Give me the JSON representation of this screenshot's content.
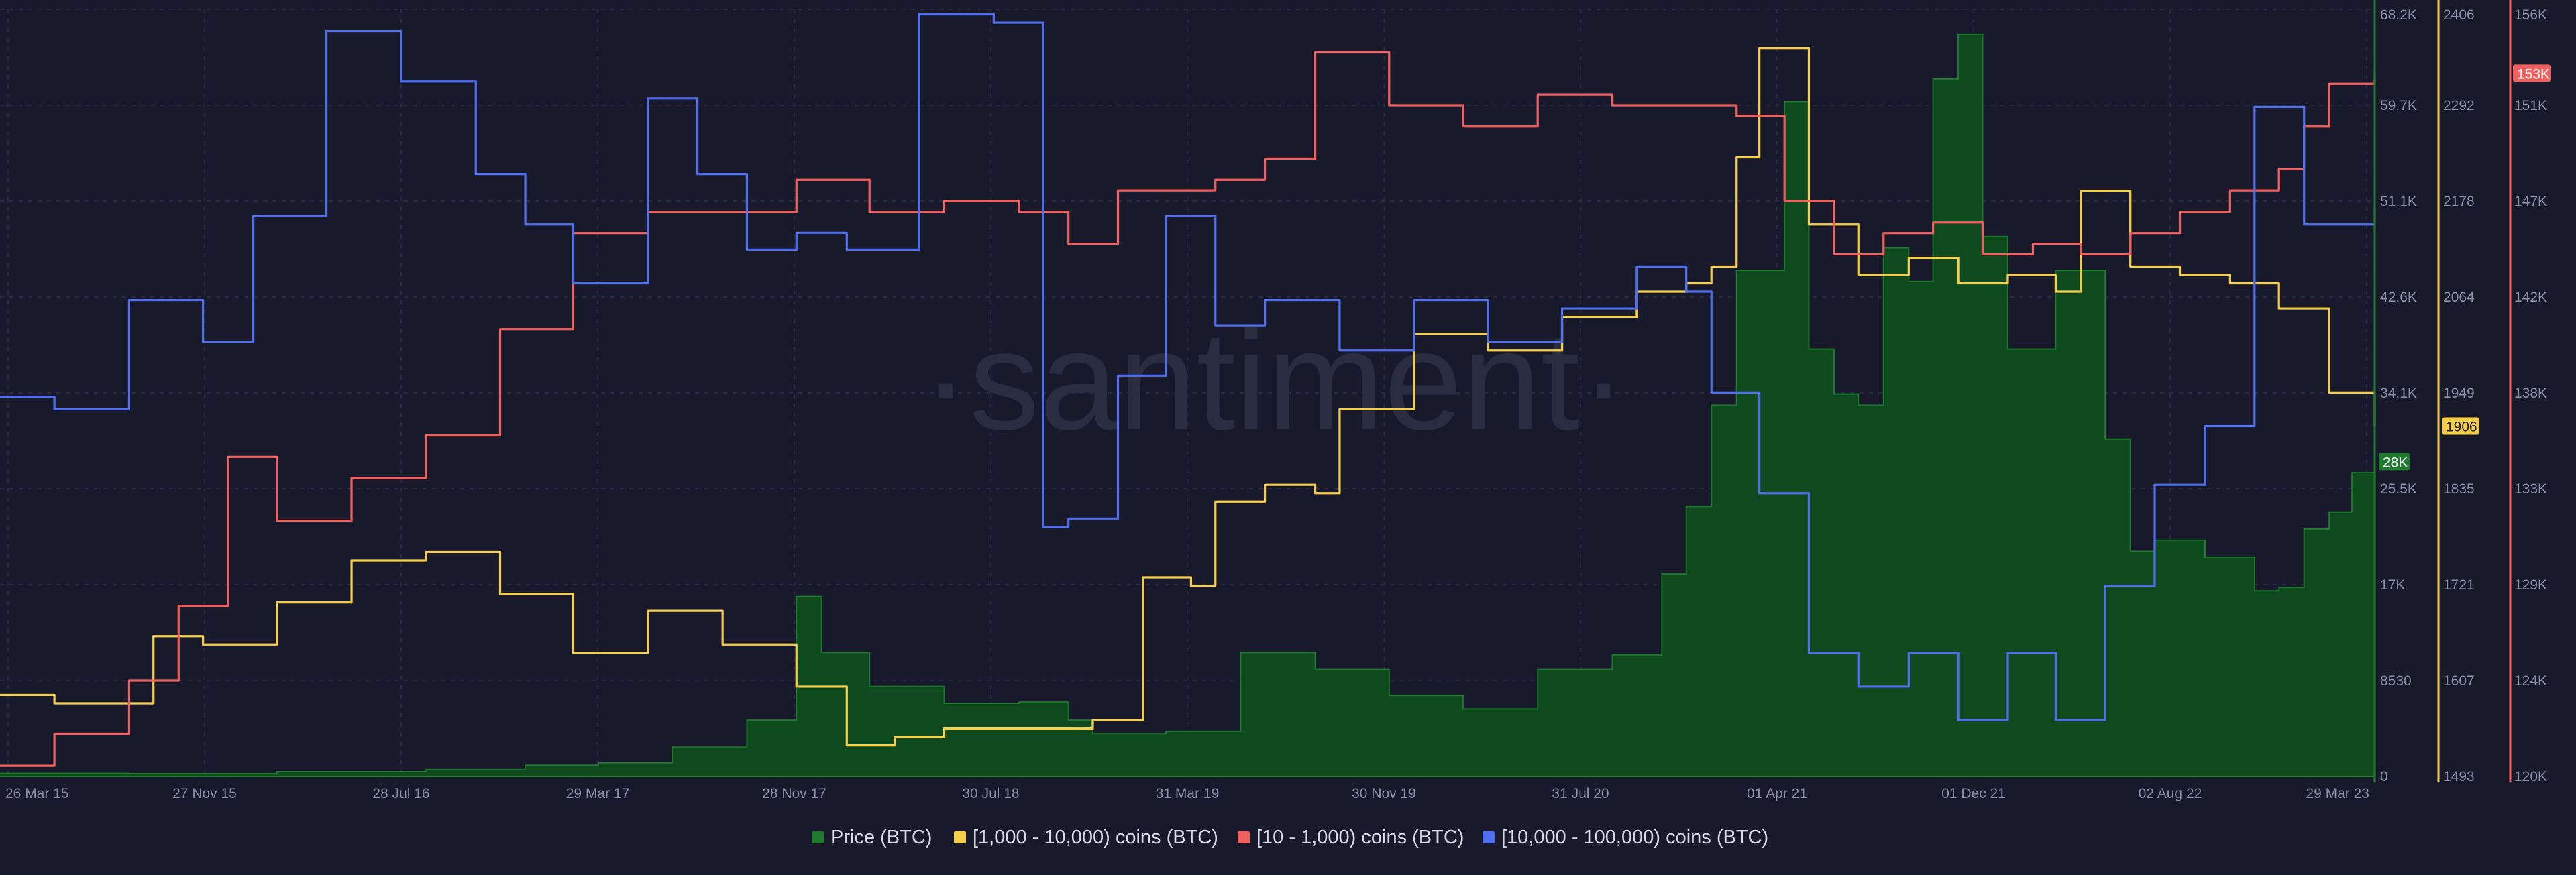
{
  "watermark": "·santiment·",
  "colors": {
    "background": "#181a2b",
    "grid": "#262940",
    "price": "#1f7a2e",
    "price_fill": "#0f4a1f",
    "large": "#f5cf4a",
    "small": "#f0605e",
    "whale": "#4f6ff0",
    "axis_text": "#8b8fa8"
  },
  "chart_data": {
    "type": "area",
    "title": "",
    "x_ticks": [
      "26 Mar 15",
      "27 Nov 15",
      "28 Jul 16",
      "29 Mar 17",
      "28 Nov 17",
      "30 Jul 18",
      "31 Mar 19",
      "30 Nov 19",
      "31 Jul 20",
      "01 Apr 21",
      "01 Dec 21",
      "02 Aug 22",
      "29 Mar 23"
    ],
    "x_range": [
      "2015-03-26",
      "2023-03-29"
    ],
    "axes": [
      {
        "id": "price",
        "ticks": [
          "0",
          "8530",
          "17K",
          "25.5K",
          "34.1K",
          "42.6K",
          "51.1K",
          "59.7K",
          "68.2K"
        ],
        "range": [
          0,
          68200
        ],
        "current_label": "28K"
      },
      {
        "id": "large",
        "ticks": [
          "1493",
          "1607",
          "1721",
          "1835",
          "1949",
          "2064",
          "2178",
          "2292",
          "2406"
        ],
        "range": [
          1493,
          2406
        ],
        "current_label": "1906"
      },
      {
        "id": "small",
        "ticks": [
          "120K",
          "124K",
          "129K",
          "133K",
          "138K",
          "142K",
          "147K",
          "151K",
          "156K"
        ],
        "range": [
          120000,
          156000
        ],
        "current_label": "153K"
      }
    ],
    "series": [
      {
        "name": "Price (BTC)",
        "axis": "price",
        "kind": "area",
        "x": [
          "2015-03",
          "2015-09",
          "2016-03",
          "2016-09",
          "2017-01",
          "2017-04",
          "2017-07",
          "2017-10",
          "2017-12",
          "2018-01",
          "2018-03",
          "2018-06",
          "2018-09",
          "2018-11",
          "2018-12",
          "2019-03",
          "2019-06",
          "2019-09",
          "2019-12",
          "2020-03",
          "2020-06",
          "2020-09",
          "2020-11",
          "2020-12",
          "2021-01",
          "2021-02",
          "2021-04",
          "2021-05",
          "2021-06",
          "2021-07",
          "2021-08",
          "2021-09",
          "2021-10",
          "2021-11",
          "2021-12",
          "2022-01",
          "2022-03",
          "2022-05",
          "2022-06",
          "2022-07",
          "2022-09",
          "2022-11",
          "2022-12",
          "2023-01",
          "2023-02",
          "2023-03",
          "2023-03-29"
        ],
        "values": [
          260,
          240,
          420,
          600,
          1000,
          1200,
          2600,
          5000,
          16000,
          11000,
          8000,
          6500,
          6600,
          5000,
          3800,
          4000,
          11000,
          9500,
          7200,
          6000,
          9500,
          10800,
          18000,
          24000,
          33000,
          45000,
          60000,
          38000,
          34000,
          33000,
          47000,
          44000,
          62000,
          66000,
          48000,
          38000,
          45000,
          30000,
          20000,
          21000,
          19500,
          16500,
          16800,
          22000,
          23500,
          27000,
          28000
        ]
      },
      {
        "name": "[1,000 - 10,000) coins (BTC)",
        "axis": "large",
        "kind": "line",
        "x": [
          "2015-03",
          "2015-06",
          "2015-10",
          "2015-12",
          "2016-03",
          "2016-06",
          "2016-09",
          "2016-12",
          "2017-03",
          "2017-06",
          "2017-09",
          "2017-12",
          "2018-02",
          "2018-04",
          "2018-06",
          "2018-09",
          "2018-12",
          "2019-02",
          "2019-04",
          "2019-05",
          "2019-07",
          "2019-09",
          "2019-10",
          "2020-01",
          "2020-04",
          "2020-07",
          "2020-10",
          "2020-12",
          "2021-01",
          "2021-02",
          "2021-03",
          "2021-05",
          "2021-07",
          "2021-09",
          "2021-11",
          "2022-01",
          "2022-03",
          "2022-04",
          "2022-06",
          "2022-08",
          "2022-10",
          "2022-12",
          "2023-02",
          "2023-03-29"
        ],
        "values": [
          1590,
          1580,
          1660,
          1650,
          1700,
          1750,
          1760,
          1710,
          1640,
          1690,
          1650,
          1600,
          1530,
          1540,
          1550,
          1550,
          1560,
          1730,
          1720,
          1820,
          1840,
          1830,
          1930,
          2020,
          2000,
          2040,
          2070,
          2080,
          2100,
          2230,
          2360,
          2150,
          2090,
          2110,
          2080,
          2090,
          2070,
          2190,
          2100,
          2090,
          2080,
          2050,
          1950,
          1910
        ]
      },
      {
        "name": "[10 - 1,000) coins (BTC)",
        "axis": "small",
        "kind": "line",
        "x": [
          "2015-03",
          "2015-06",
          "2015-09",
          "2015-11",
          "2016-01",
          "2016-03",
          "2016-06",
          "2016-09",
          "2016-12",
          "2017-03",
          "2017-06",
          "2017-09",
          "2017-12",
          "2018-03",
          "2018-06",
          "2018-09",
          "2018-11",
          "2019-01",
          "2019-03",
          "2019-05",
          "2019-07",
          "2019-09",
          "2019-12",
          "2020-03",
          "2020-06",
          "2020-09",
          "2020-12",
          "2021-02",
          "2021-04",
          "2021-06",
          "2021-08",
          "2021-10",
          "2021-12",
          "2022-02",
          "2022-04",
          "2022-06",
          "2022-08",
          "2022-10",
          "2022-12",
          "2023-01",
          "2023-02",
          "2023-03-29"
        ],
        "values": [
          120500,
          122000,
          124500,
          128000,
          135000,
          132000,
          134000,
          136000,
          141000,
          145500,
          146500,
          146500,
          148000,
          146500,
          147000,
          146500,
          145000,
          147500,
          147500,
          148000,
          149000,
          154000,
          151500,
          150500,
          152000,
          151500,
          151500,
          151000,
          147000,
          144500,
          145500,
          146000,
          144500,
          145000,
          144500,
          145500,
          146500,
          147500,
          148500,
          150500,
          152500,
          153000
        ]
      },
      {
        "name": "[10,000 - 100,000) coins (BTC)",
        "axis": "large",
        "kind": "line",
        "x": [
          "2015-03",
          "2015-06",
          "2015-09",
          "2015-12",
          "2016-02",
          "2016-05",
          "2016-08",
          "2016-11",
          "2017-01",
          "2017-03",
          "2017-06",
          "2017-08",
          "2017-10",
          "2017-12",
          "2018-02",
          "2018-05",
          "2018-08",
          "2018-10",
          "2018-11",
          "2019-01",
          "2019-03",
          "2019-05",
          "2019-07",
          "2019-10",
          "2020-01",
          "2020-04",
          "2020-07",
          "2020-10",
          "2020-12",
          "2021-01",
          "2021-03",
          "2021-05",
          "2021-07",
          "2021-09",
          "2021-11",
          "2022-01",
          "2022-03",
          "2022-05",
          "2022-07",
          "2022-09",
          "2022-11",
          "2023-01",
          "2023-03-29"
        ],
        "values": [
          1945,
          1930,
          2060,
          2010,
          2160,
          2380,
          2320,
          2210,
          2150,
          2080,
          2300,
          2210,
          2120,
          2140,
          2120,
          2400,
          2390,
          1790,
          1800,
          1970,
          2160,
          2030,
          2060,
          2000,
          2060,
          2010,
          2050,
          2100,
          2070,
          1950,
          1830,
          1640,
          1600,
          1640,
          1560,
          1640,
          1560,
          1720,
          1840,
          1910,
          2290,
          2150,
          2170
        ]
      }
    ]
  }
}
